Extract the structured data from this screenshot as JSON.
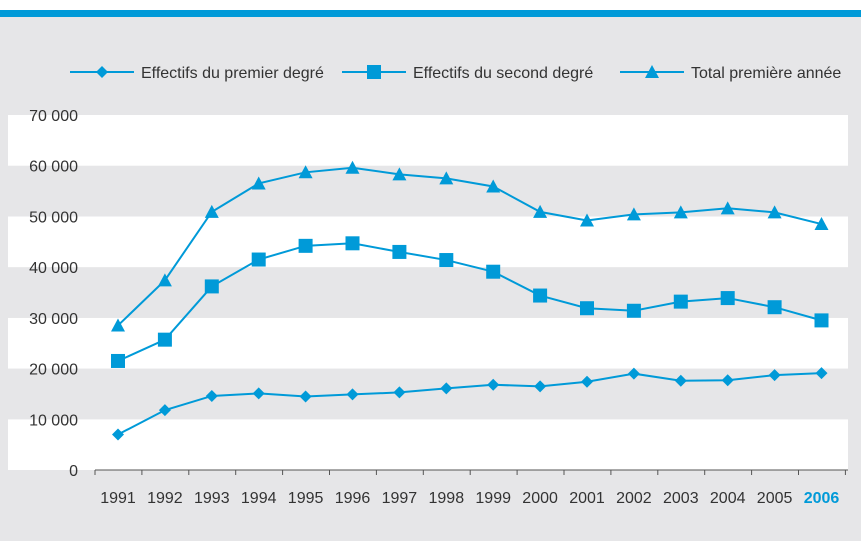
{
  "colors": {
    "series": "#009ad8",
    "band": "#e6e6e8",
    "plot_bg": "#ffffff",
    "axis": "#555555",
    "text": "#333333",
    "highlight": "#009ad8"
  },
  "chart_data": {
    "type": "line",
    "title": "",
    "xlabel": "",
    "ylabel": "",
    "ylim": [
      0,
      70000
    ],
    "yticks": [
      0,
      10000,
      20000,
      30000,
      40000,
      50000,
      60000,
      70000
    ],
    "ytick_labels": [
      "0",
      "10 000",
      "20 000",
      "30 000",
      "40 000",
      "50 000",
      "60 000",
      "70 000"
    ],
    "grid": "alternating horizontal bands",
    "legend_position": "top",
    "highlighted_category": "2006",
    "categories": [
      "1991",
      "1992",
      "1993",
      "1994",
      "1995",
      "1996",
      "1997",
      "1998",
      "1999",
      "2000",
      "2001",
      "2002",
      "2003",
      "2004",
      "2005",
      "2006"
    ],
    "series": [
      {
        "name": "Effectifs du premier degré",
        "marker": "diamond",
        "values": [
          7000,
          11800,
          14600,
          15100,
          14500,
          14900,
          15300,
          16100,
          16800,
          16500,
          17400,
          19000,
          17600,
          17700,
          18700,
          19100
        ]
      },
      {
        "name": "Effectifs du second degré",
        "marker": "square",
        "values": [
          21500,
          25700,
          36200,
          41500,
          44200,
          44700,
          43000,
          41400,
          39100,
          34400,
          31900,
          31400,
          33200,
          33900,
          32100,
          29500
        ]
      },
      {
        "name": "Total première année",
        "marker": "triangle",
        "values": [
          28500,
          37400,
          50900,
          56500,
          58700,
          59600,
          58300,
          57500,
          55900,
          50900,
          49200,
          50400,
          50800,
          51600,
          50800,
          48500
        ]
      }
    ]
  }
}
